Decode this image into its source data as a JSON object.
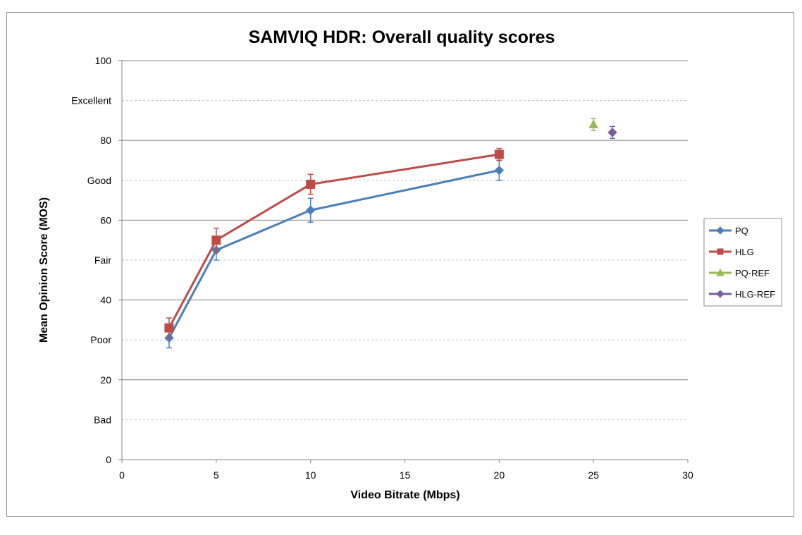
{
  "chart_data": {
    "type": "line",
    "title": "SAMVIQ HDR: Overall quality scores",
    "xlabel": "Video Bitrate (Mbps)",
    "ylabel": "Mean Opinion Score (MOS)",
    "xlim": [
      0,
      30
    ],
    "ylim": [
      0,
      100
    ],
    "x_ticks": [
      0,
      5,
      10,
      15,
      20,
      25,
      30
    ],
    "y_ticks": [
      0,
      20,
      40,
      60,
      80,
      100
    ],
    "y_category_labels": [
      {
        "value": 10,
        "label": "Bad"
      },
      {
        "value": 30,
        "label": "Poor"
      },
      {
        "value": 50,
        "label": "Fair"
      },
      {
        "value": 70,
        "label": "Good"
      },
      {
        "value": 90,
        "label": "Excellent"
      }
    ],
    "grid": "horizontal",
    "legend_position": "right",
    "series": [
      {
        "name": "PQ",
        "color": "#4a7ebb",
        "marker": "diamond",
        "connected": true,
        "x": [
          2.5,
          5,
          10,
          20
        ],
        "y": [
          30.5,
          52.5,
          62.5,
          72.5
        ],
        "err": [
          2.5,
          2.5,
          3,
          2.5
        ]
      },
      {
        "name": "HLG",
        "color": "#be4b48",
        "marker": "square",
        "connected": true,
        "x": [
          2.5,
          5,
          10,
          20
        ],
        "y": [
          33,
          55,
          69,
          76.5
        ],
        "err": [
          2.5,
          3,
          2.5,
          1.5
        ]
      },
      {
        "name": "PQ-REF",
        "color": "#98b954",
        "marker": "triangle",
        "connected": false,
        "x": [
          25
        ],
        "y": [
          84
        ],
        "err": [
          1.5
        ]
      },
      {
        "name": "HLG-REF",
        "color": "#7d5fa0",
        "marker": "diamond",
        "connected": false,
        "x": [
          26
        ],
        "y": [
          82
        ],
        "err": [
          1.5
        ]
      }
    ]
  }
}
